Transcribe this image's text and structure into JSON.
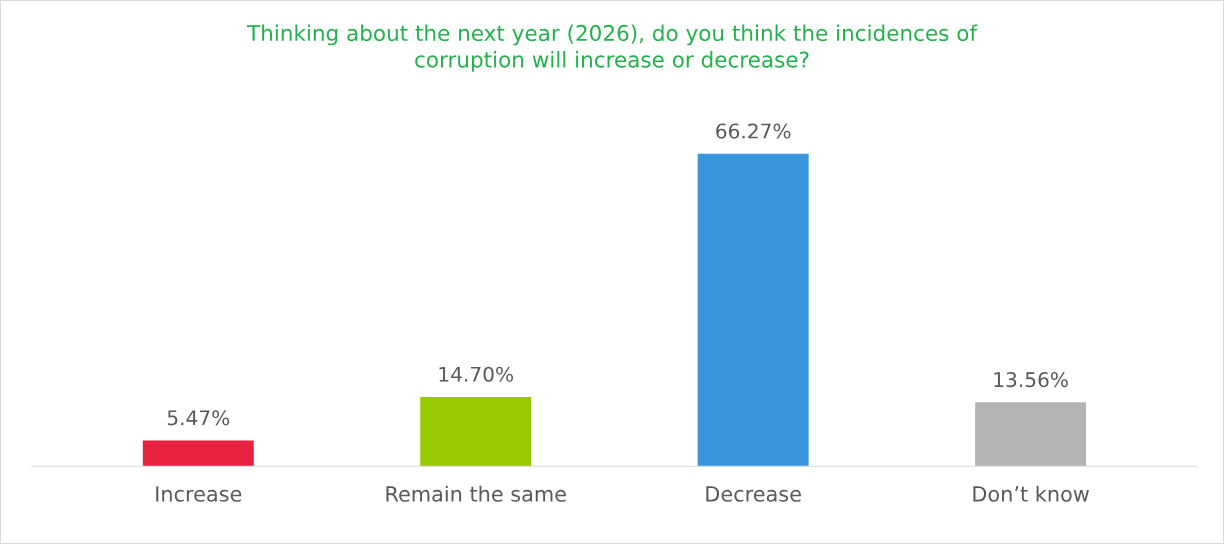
{
  "chart_data": {
    "type": "bar",
    "title": "Thinking about the next year (2026), do you think the incidences of\ncorruption will increase or decrease?",
    "categories": [
      "Increase",
      "Remain the same",
      "Decrease",
      "Don’t know"
    ],
    "values": [
      5.47,
      14.7,
      66.27,
      13.56
    ],
    "value_labels": [
      "5.47%",
      "14.70%",
      "66.27%",
      "13.56%"
    ],
    "colors": [
      "#e8213f",
      "#97c800",
      "#3a96dc",
      "#b3b3b3"
    ],
    "tick_labels": "x"
  }
}
